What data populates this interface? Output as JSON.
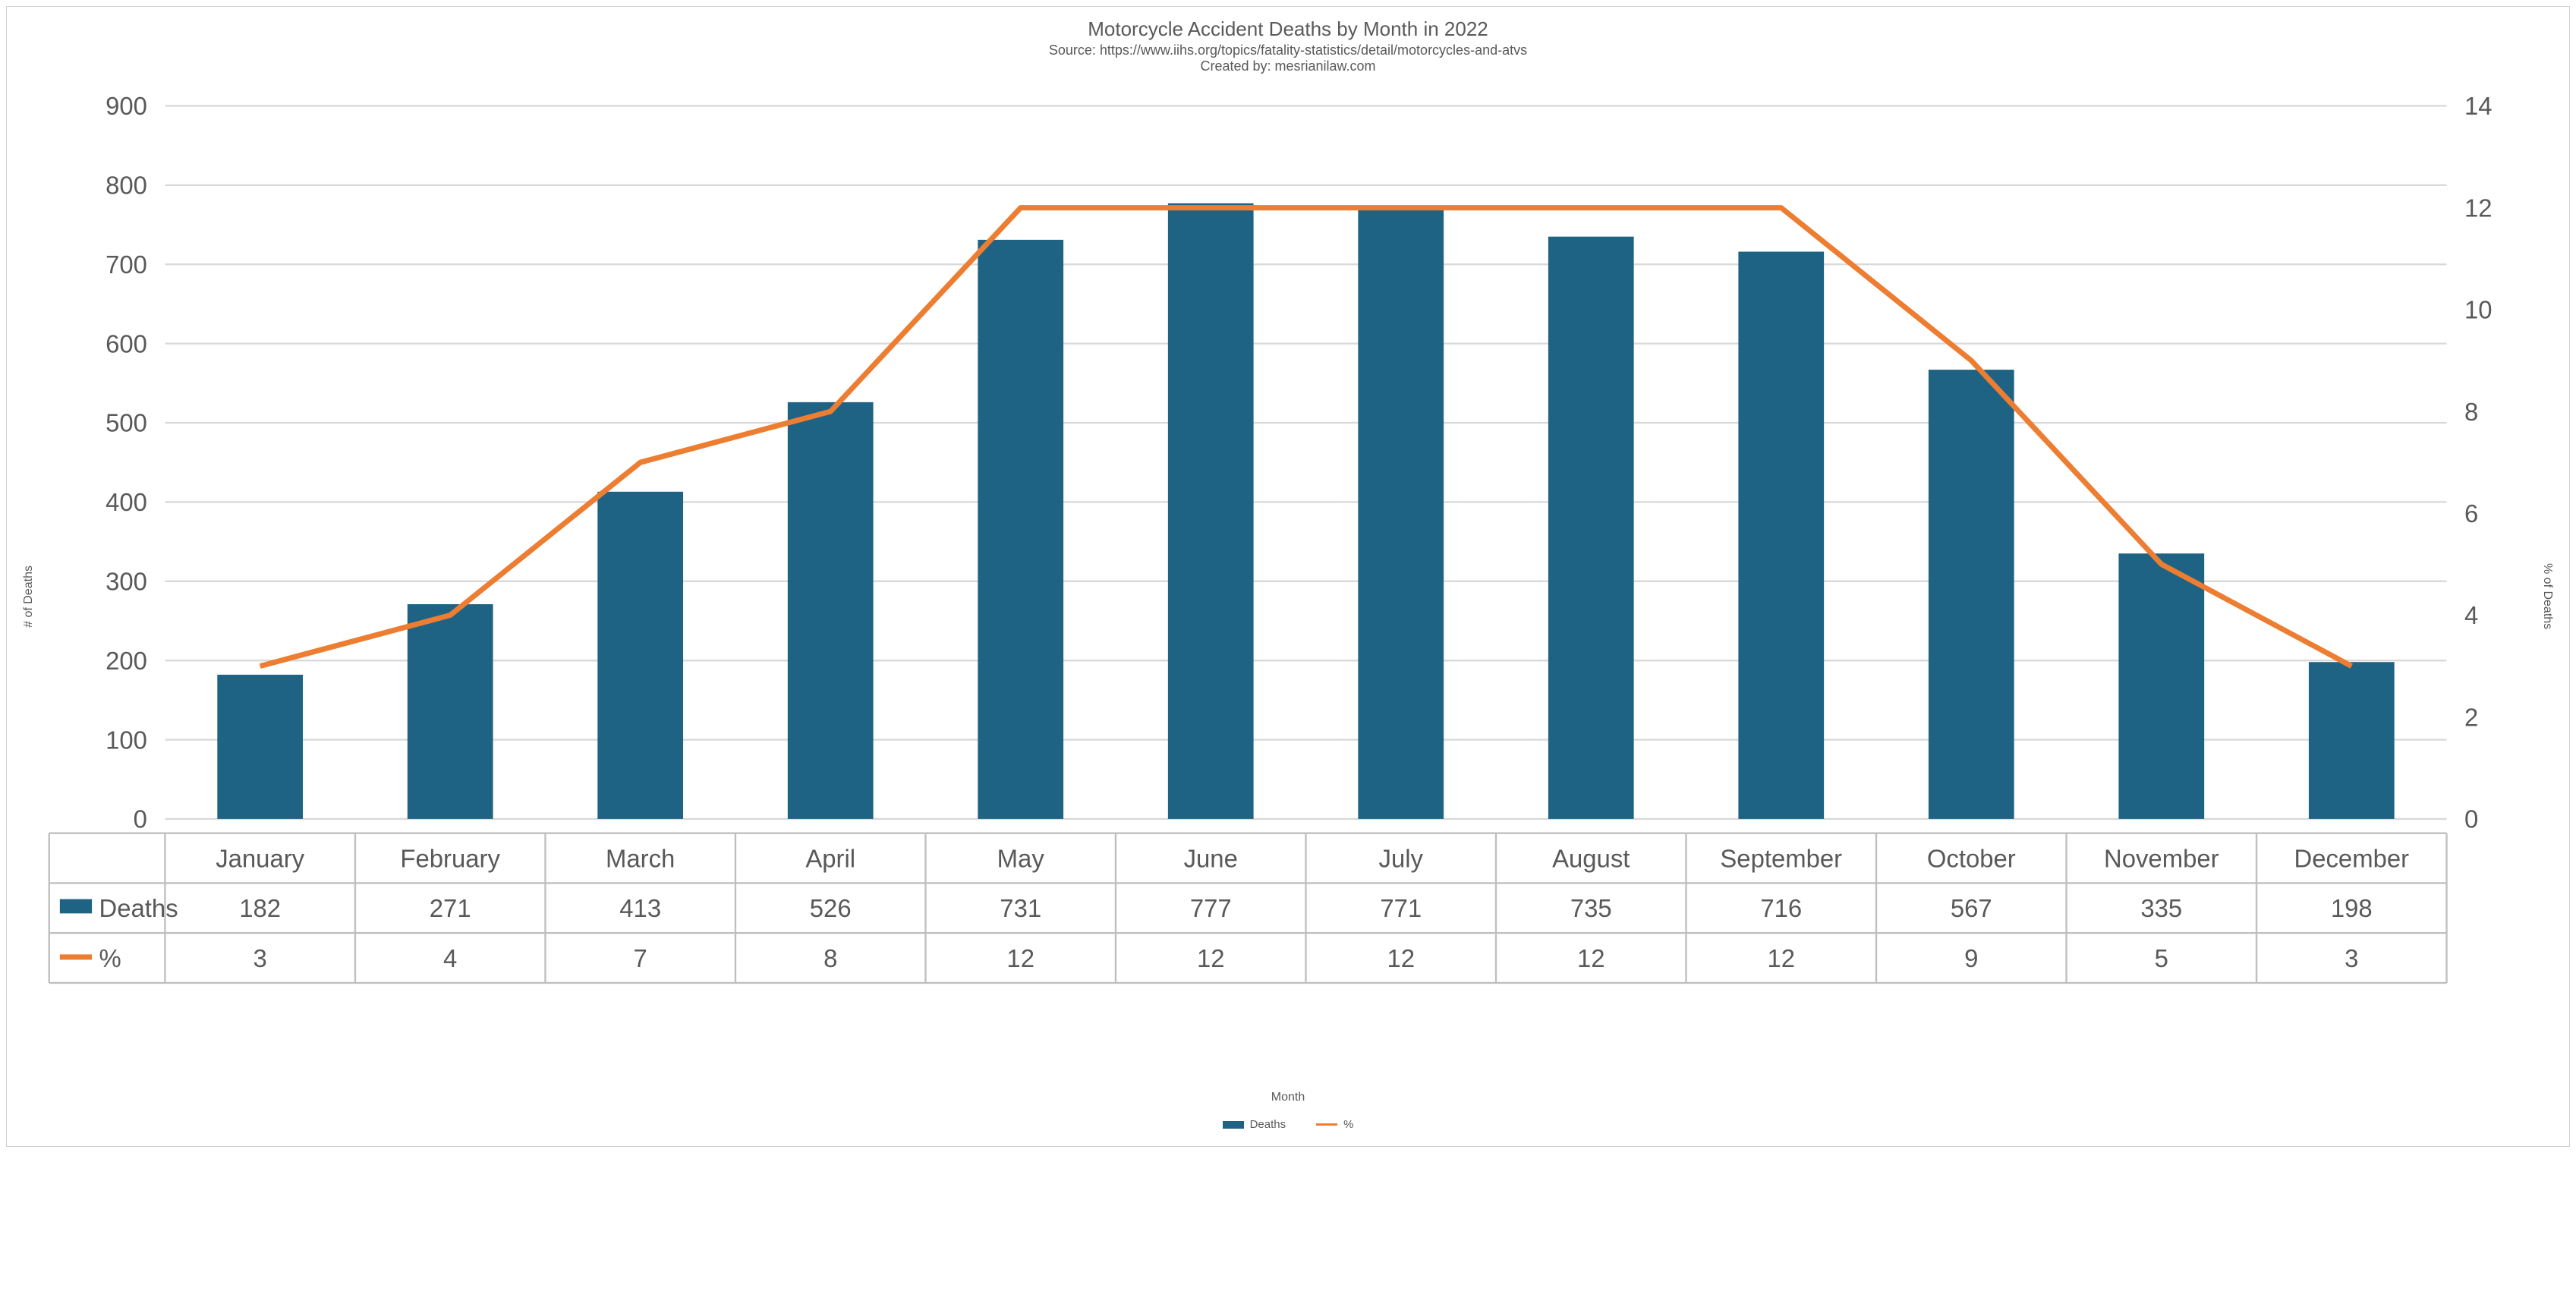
{
  "chart": {
    "type": "bar+line",
    "title": "Motorcycle Accident Deaths by Month in 2022",
    "subtitle1": "Source: https://www.iihs.org/topics/fatality-statistics/detail/motorcycles-and-atvs",
    "subtitle2": "Created by: mesrianilaw.com",
    "title_fontsize": 26,
    "subtitle_fontsize": 18,
    "x_axis_label": "Month",
    "y_left_label": "# of Deaths",
    "y_right_label": "% of Deaths",
    "categories": [
      "January",
      "February",
      "March",
      "April",
      "May",
      "June",
      "July",
      "August",
      "September",
      "October",
      "November",
      "December"
    ],
    "series_bar": {
      "name": "Deaths",
      "values": [
        182,
        271,
        413,
        526,
        731,
        777,
        771,
        735,
        716,
        567,
        335,
        198
      ],
      "ylim": [
        0,
        900
      ],
      "ytick_step": 100,
      "color": "#1f6384",
      "bar_width": 0.45
    },
    "series_line": {
      "name": "%",
      "values": [
        3,
        4,
        7,
        8,
        12,
        12,
        12,
        12,
        12,
        9,
        5,
        3
      ],
      "ylim": [
        0,
        14
      ],
      "ytick_step": 2,
      "color": "#ed7d31",
      "line_width": 3
    },
    "table_row1_header": "Deaths",
    "table_row2_header": "%",
    "background_color": "#ffffff",
    "grid_color": "#d9d9d9",
    "border_color": "#bfbfbf",
    "text_color": "#595959",
    "tick_fontsize": 14,
    "table_fontsize": 14
  },
  "legend": {
    "bar_label": "Deaths",
    "line_label": "%"
  }
}
